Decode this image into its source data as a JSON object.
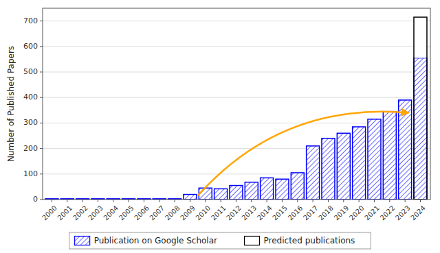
{
  "chart_data": {
    "type": "bar",
    "x": [
      2000,
      2001,
      2002,
      2003,
      2004,
      2005,
      2006,
      2007,
      2008,
      2009,
      2010,
      2011,
      2012,
      2013,
      2014,
      2015,
      2016,
      2017,
      2018,
      2019,
      2020,
      2021,
      2022,
      2023,
      2024
    ],
    "series": [
      {
        "name": "Publication on Google Scholar",
        "color": "#0000FF",
        "values": [
          3,
          3,
          3,
          3,
          3,
          3,
          3,
          3,
          3,
          20,
          45,
          42,
          55,
          68,
          85,
          80,
          105,
          210,
          240,
          260,
          285,
          315,
          345,
          390,
          555
        ]
      },
      {
        "name": "Predicted publications",
        "color": "#000000",
        "values": [
          null,
          null,
          null,
          null,
          null,
          null,
          null,
          null,
          null,
          null,
          null,
          null,
          null,
          null,
          null,
          null,
          null,
          null,
          null,
          null,
          null,
          null,
          null,
          null,
          715
        ]
      }
    ],
    "annotations": [
      {
        "x": [
          2009.5,
          2023.2
        ],
        "y": [
          15,
          340
        ],
        "color": "#FFA500"
      }
    ],
    "y_label": "Number of Published Papers",
    "xlim": [
      1999.4,
      2024.65
    ],
    "xticks": [
      2000,
      2001,
      2002,
      2003,
      2004,
      2005,
      2006,
      2007,
      2008,
      2009,
      2010,
      2011,
      2012,
      2013,
      2014,
      2015,
      2016,
      2017,
      2018,
      2019,
      2020,
      2021,
      2022,
      2023,
      2024
    ],
    "ylim": [
      0,
      750
    ],
    "yticks": [
      0,
      100,
      200,
      300,
      400,
      500,
      600,
      700
    ],
    "grid": true,
    "legend": "bottom"
  }
}
